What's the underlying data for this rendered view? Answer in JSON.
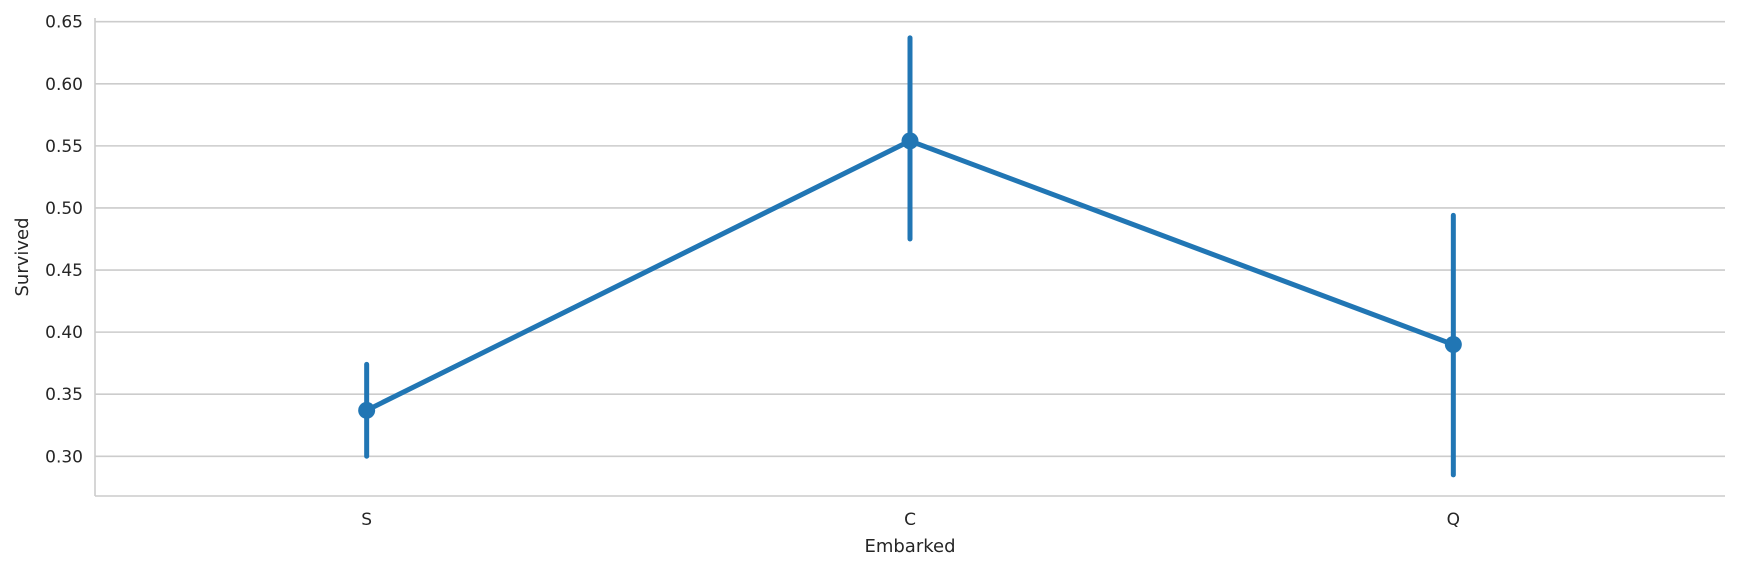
{
  "chart_data": {
    "type": "line",
    "title": "",
    "xlabel": "Embarked",
    "ylabel": "Survived",
    "categories": [
      "S",
      "C",
      "Q"
    ],
    "series": [
      {
        "name": "",
        "values": [
          0.337,
          0.554,
          0.39
        ],
        "ci_low": [
          0.3,
          0.475,
          0.285
        ],
        "ci_high": [
          0.374,
          0.637,
          0.494
        ]
      }
    ],
    "ylim": [
      0.268,
      0.653
    ],
    "yticks": [
      "0.30",
      "0.35",
      "0.40",
      "0.45",
      "0.50",
      "0.55",
      "0.60",
      "0.65"
    ],
    "ytick_values": [
      0.3,
      0.35,
      0.4,
      0.45,
      0.5,
      0.55,
      0.6,
      0.65
    ],
    "grid": "horizontal",
    "colors": {
      "series": "#2176b4",
      "grid": "#cccccc",
      "text": "#262626"
    }
  }
}
